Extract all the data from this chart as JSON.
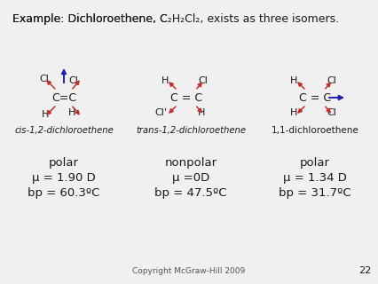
{
  "title_parts": [
    "Example: Dichloroethene, C",
    "2",
    "H",
    "2",
    "Cl",
    "2",
    ", exists as three isomers."
  ],
  "bg_color": "#f0f0f0",
  "text_color": "#1a1a1a",
  "arrow_color_red": "#c03030",
  "arrow_color_blue": "#2020b0",
  "footer": "Copyright McGraw-Hill 2009",
  "page_num": "22",
  "mol1_label": "cis-1,2-dichloroethene",
  "mol2_label": "trans-1,2-dichloroethene",
  "mol3_label": "1,1-dichloroethene",
  "mol1_polar": "polar",
  "mol1_mu": "μ = 1.90 D",
  "mol1_bp": "bp = 60.3ºC",
  "mol2_polar": "nonpolar",
  "mol2_mu": "μ =0D",
  "mol2_bp": "bp = 47.5ºC",
  "mol3_polar": "polar",
  "mol3_mu": "μ = 1.34 D",
  "mol3_bp": "bp = 31.7ºC",
  "figsize": [
    4.27,
    3.2
  ],
  "dpi": 100
}
